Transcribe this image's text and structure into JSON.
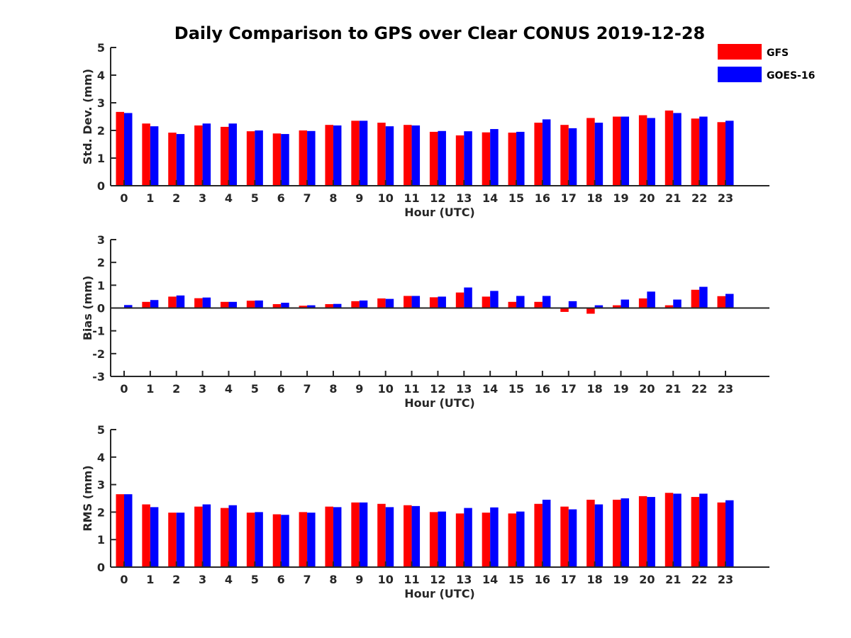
{
  "title": "Daily Comparison to GPS over Clear CONUS 2019-12-28",
  "colors": {
    "GFS": "#ff0000",
    "GOES-16": "#0000ff",
    "axis": "#262626"
  },
  "legend": {
    "placement": "top-right",
    "entries": [
      "GFS",
      "GOES-16"
    ]
  },
  "chart_data": [
    {
      "type": "bar",
      "xlabel": "Hour (UTC)",
      "ylabel": "Std. Dev. (mm)",
      "ylim": [
        0,
        5
      ],
      "yticks": [
        0,
        1,
        2,
        3,
        4,
        5
      ],
      "categories": [
        "0",
        "1",
        "2",
        "3",
        "4",
        "5",
        "6",
        "7",
        "8",
        "9",
        "10",
        "11",
        "12",
        "13",
        "14",
        "15",
        "16",
        "17",
        "18",
        "19",
        "20",
        "21",
        "22",
        "23"
      ],
      "series": [
        {
          "name": "GFS",
          "values": [
            2.67,
            2.25,
            1.92,
            2.18,
            2.13,
            1.97,
            1.89,
            2.0,
            2.2,
            2.35,
            2.28,
            2.2,
            1.95,
            1.82,
            1.93,
            1.92,
            2.28,
            2.2,
            2.45,
            2.5,
            2.55,
            2.72,
            2.43,
            2.3
          ]
        },
        {
          "name": "GOES-16",
          "values": [
            2.63,
            2.15,
            1.87,
            2.25,
            2.25,
            2.0,
            1.87,
            1.98,
            2.18,
            2.35,
            2.15,
            2.18,
            1.98,
            1.97,
            2.05,
            1.95,
            2.4,
            2.08,
            2.28,
            2.5,
            2.45,
            2.63,
            2.5,
            2.35
          ]
        }
      ]
    },
    {
      "type": "bar",
      "xlabel": "Hour (UTC)",
      "ylabel": "Bias (mm)",
      "ylim": [
        -3,
        3
      ],
      "yticks": [
        -3,
        -2,
        -1,
        0,
        1,
        2,
        3
      ],
      "categories": [
        "0",
        "1",
        "2",
        "3",
        "4",
        "5",
        "6",
        "7",
        "8",
        "9",
        "10",
        "11",
        "12",
        "13",
        "14",
        "15",
        "16",
        "17",
        "18",
        "19",
        "20",
        "21",
        "22",
        "23"
      ],
      "series": [
        {
          "name": "GFS",
          "values": [
            0.02,
            0.27,
            0.5,
            0.43,
            0.27,
            0.32,
            0.17,
            0.1,
            0.17,
            0.3,
            0.42,
            0.53,
            0.47,
            0.68,
            0.5,
            0.27,
            0.27,
            -0.17,
            -0.25,
            0.12,
            0.42,
            0.12,
            0.8,
            0.52
          ]
        },
        {
          "name": "GOES-16",
          "values": [
            0.13,
            0.35,
            0.55,
            0.46,
            0.27,
            0.33,
            0.23,
            0.12,
            0.18,
            0.33,
            0.4,
            0.53,
            0.5,
            0.9,
            0.75,
            0.53,
            0.53,
            0.3,
            0.12,
            0.37,
            0.72,
            0.37,
            0.93,
            0.62
          ]
        }
      ]
    },
    {
      "type": "bar",
      "xlabel": "Hour (UTC)",
      "ylabel": "RMS (mm)",
      "ylim": [
        0,
        5
      ],
      "yticks": [
        0,
        1,
        2,
        3,
        4,
        5
      ],
      "categories": [
        "0",
        "1",
        "2",
        "3",
        "4",
        "5",
        "6",
        "7",
        "8",
        "9",
        "10",
        "11",
        "12",
        "13",
        "14",
        "15",
        "16",
        "17",
        "18",
        "19",
        "20",
        "21",
        "22",
        "23"
      ],
      "series": [
        {
          "name": "GFS",
          "values": [
            2.65,
            2.28,
            1.98,
            2.2,
            2.15,
            1.98,
            1.92,
            2.0,
            2.2,
            2.35,
            2.3,
            2.25,
            2.0,
            1.95,
            1.98,
            1.95,
            2.3,
            2.2,
            2.45,
            2.45,
            2.58,
            2.7,
            2.55,
            2.35
          ]
        },
        {
          "name": "GOES-16",
          "values": [
            2.65,
            2.18,
            1.98,
            2.28,
            2.25,
            2.0,
            1.9,
            1.98,
            2.18,
            2.35,
            2.18,
            2.22,
            2.02,
            2.15,
            2.17,
            2.02,
            2.45,
            2.1,
            2.28,
            2.5,
            2.55,
            2.67,
            2.67,
            2.43
          ]
        }
      ]
    }
  ]
}
